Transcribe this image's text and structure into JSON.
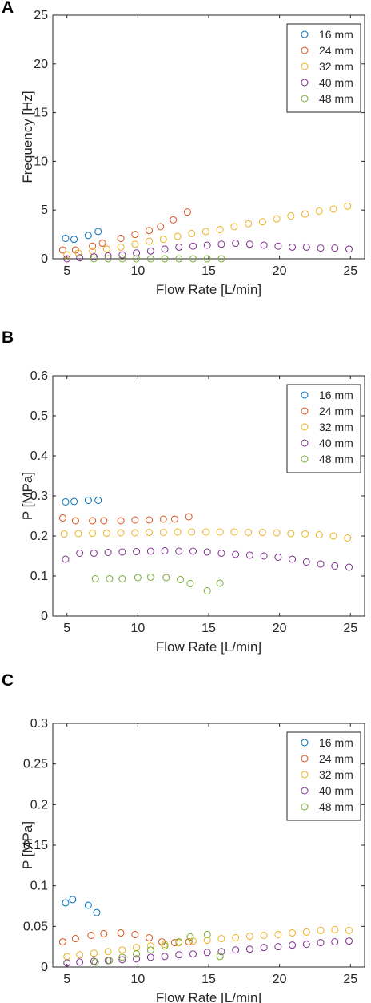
{
  "colors": {
    "16 mm": "#0072BD",
    "24 mm": "#D95319",
    "32 mm": "#EDB120",
    "40 mm": "#7E2F8E",
    "48 mm": "#77AC30"
  },
  "chart_data": [
    {
      "panel_label": "A",
      "type": "scatter",
      "xlabel": "Flow Rate [L/min]",
      "ylabel": "Frequency [Hz]",
      "xlim": [
        4,
        26
      ],
      "ylim": [
        0,
        25
      ],
      "xticks": [
        5,
        10,
        15,
        20,
        25
      ],
      "yticks": [
        0,
        5,
        10,
        15,
        20,
        25
      ],
      "ytick_labels": [
        "0",
        "5",
        "10",
        "15",
        "20",
        "25"
      ],
      "grid": false,
      "legend_position": "top-right",
      "series": [
        {
          "name": "16 mm",
          "x": [
            4.9,
            5.5,
            6.5,
            7.2
          ],
          "y": [
            2.1,
            2.0,
            2.4,
            2.8
          ]
        },
        {
          "name": "24 mm",
          "x": [
            4.7,
            5.6,
            6.8,
            7.5,
            8.8,
            9.8,
            10.8,
            11.6,
            12.5,
            13.5
          ],
          "y": [
            0.9,
            0.9,
            1.3,
            1.6,
            2.1,
            2.5,
            2.9,
            3.3,
            4.0,
            4.8
          ]
        },
        {
          "name": "32 mm",
          "x": [
            5.0,
            5.8,
            6.8,
            7.8,
            8.8,
            9.8,
            10.8,
            11.8,
            12.8,
            13.8,
            14.8,
            15.8,
            16.8,
            17.8,
            18.8,
            19.8,
            20.8,
            21.8,
            22.8,
            23.8,
            24.8
          ],
          "y": [
            0.4,
            0.6,
            0.8,
            1.0,
            1.2,
            1.5,
            1.8,
            2.0,
            2.3,
            2.6,
            2.8,
            3.0,
            3.3,
            3.6,
            3.8,
            4.1,
            4.4,
            4.6,
            4.9,
            5.1,
            5.4
          ]
        },
        {
          "name": "40 mm",
          "x": [
            5.0,
            5.9,
            6.9,
            7.9,
            8.9,
            9.9,
            10.9,
            11.9,
            12.9,
            13.9,
            14.9,
            15.9,
            16.9,
            17.9,
            18.9,
            19.9,
            20.9,
            21.9,
            22.9,
            23.9,
            24.9
          ],
          "y": [
            0.0,
            0.1,
            0.2,
            0.3,
            0.4,
            0.6,
            0.8,
            1.0,
            1.2,
            1.3,
            1.4,
            1.5,
            1.6,
            1.5,
            1.4,
            1.3,
            1.2,
            1.2,
            1.1,
            1.1,
            1.0
          ]
        },
        {
          "name": "48 mm",
          "x": [
            6.9,
            7.9,
            8.9,
            9.9,
            10.9,
            11.9,
            12.9,
            13.9,
            14.9,
            15.9
          ],
          "y": [
            0.0,
            0.0,
            0.0,
            0.0,
            0.0,
            0.0,
            0.0,
            0.0,
            0.0,
            0.0
          ]
        }
      ]
    },
    {
      "panel_label": "B",
      "type": "scatter",
      "xlabel": "Flow Rate [L/min]",
      "ylabel": "P [MPa]",
      "xlim": [
        4,
        26
      ],
      "ylim": [
        0,
        0.6
      ],
      "xticks": [
        5,
        10,
        15,
        20,
        25
      ],
      "yticks": [
        0,
        0.1,
        0.2,
        0.3,
        0.4,
        0.5,
        0.6
      ],
      "ytick_labels": [
        "0",
        "0.1",
        "0.2",
        "0.3",
        "0.4",
        "0.5",
        "0.6"
      ],
      "grid": false,
      "legend_position": "top-right",
      "series": [
        {
          "name": "16 mm",
          "x": [
            4.9,
            5.5,
            6.5,
            7.2
          ],
          "y": [
            0.285,
            0.286,
            0.289,
            0.289
          ]
        },
        {
          "name": "24 mm",
          "x": [
            4.7,
            5.6,
            6.8,
            7.6,
            8.8,
            9.8,
            10.8,
            11.8,
            12.6,
            13.6
          ],
          "y": [
            0.245,
            0.238,
            0.238,
            0.238,
            0.238,
            0.24,
            0.24,
            0.242,
            0.242,
            0.248
          ]
        },
        {
          "name": "32 mm",
          "x": [
            4.8,
            5.8,
            6.8,
            7.8,
            8.8,
            9.8,
            10.8,
            11.8,
            12.8,
            13.8,
            14.8,
            15.8,
            16.8,
            17.8,
            18.8,
            19.8,
            20.8,
            21.8,
            22.8,
            23.8,
            24.8
          ],
          "y": [
            0.205,
            0.206,
            0.207,
            0.207,
            0.208,
            0.208,
            0.209,
            0.209,
            0.21,
            0.21,
            0.21,
            0.21,
            0.21,
            0.209,
            0.209,
            0.208,
            0.206,
            0.205,
            0.203,
            0.2,
            0.195
          ]
        },
        {
          "name": "40 mm",
          "x": [
            4.9,
            5.9,
            6.9,
            7.9,
            8.9,
            9.9,
            10.9,
            11.9,
            12.9,
            13.9,
            14.9,
            15.9,
            16.9,
            17.9,
            18.9,
            19.9,
            20.9,
            21.9,
            22.9,
            23.9,
            24.9
          ],
          "y": [
            0.142,
            0.157,
            0.157,
            0.159,
            0.16,
            0.161,
            0.162,
            0.163,
            0.162,
            0.162,
            0.16,
            0.157,
            0.154,
            0.152,
            0.15,
            0.147,
            0.142,
            0.135,
            0.13,
            0.125,
            0.122
          ]
        },
        {
          "name": "48 mm",
          "x": [
            7.0,
            8.0,
            8.9,
            10.0,
            10.9,
            12.0,
            13.0,
            13.7,
            14.9,
            15.8
          ],
          "y": [
            0.093,
            0.093,
            0.093,
            0.096,
            0.097,
            0.096,
            0.091,
            0.081,
            0.063,
            0.082
          ]
        }
      ]
    },
    {
      "panel_label": "C",
      "type": "scatter",
      "xlabel": "Flow Rate [L/min]",
      "ylabel": "P [MPa]",
      "xlim": [
        4,
        26
      ],
      "ylim": [
        0,
        0.3
      ],
      "xticks": [
        5,
        10,
        15,
        20,
        25
      ],
      "yticks": [
        0,
        0.05,
        0.1,
        0.15,
        0.2,
        0.25,
        0.3
      ],
      "ytick_labels": [
        "0",
        "0.05",
        "0.1",
        "0.15",
        "0.2",
        "0.25",
        "0.3"
      ],
      "grid": false,
      "legend_position": "top-right",
      "series": [
        {
          "name": "16 mm",
          "x": [
            4.9,
            5.4,
            6.5,
            7.1
          ],
          "y": [
            0.079,
            0.083,
            0.076,
            0.067
          ]
        },
        {
          "name": "24 mm",
          "x": [
            4.7,
            5.6,
            6.7,
            7.6,
            8.8,
            9.8,
            10.8,
            11.7,
            12.6,
            13.6
          ],
          "y": [
            0.031,
            0.035,
            0.039,
            0.041,
            0.042,
            0.04,
            0.036,
            0.031,
            0.03,
            0.031
          ]
        },
        {
          "name": "32 mm",
          "x": [
            5.0,
            5.9,
            6.9,
            7.9,
            8.9,
            9.9,
            10.9,
            11.9,
            12.9,
            13.9,
            14.9,
            15.9,
            16.9,
            17.9,
            18.9,
            19.9,
            20.9,
            21.9,
            22.9,
            23.9,
            24.9
          ],
          "y": [
            0.013,
            0.015,
            0.017,
            0.019,
            0.021,
            0.024,
            0.026,
            0.028,
            0.03,
            0.032,
            0.033,
            0.035,
            0.036,
            0.038,
            0.039,
            0.04,
            0.042,
            0.043,
            0.045,
            0.046,
            0.045
          ]
        },
        {
          "name": "40 mm",
          "x": [
            5.0,
            5.9,
            6.9,
            7.9,
            8.9,
            9.9,
            10.9,
            11.9,
            12.9,
            13.9,
            14.9,
            15.9,
            16.9,
            17.9,
            18.9,
            19.9,
            20.9,
            21.9,
            22.9,
            23.9,
            24.9
          ],
          "y": [
            0.005,
            0.006,
            0.007,
            0.008,
            0.009,
            0.01,
            0.012,
            0.013,
            0.015,
            0.016,
            0.018,
            0.019,
            0.021,
            0.022,
            0.024,
            0.025,
            0.027,
            0.028,
            0.03,
            0.031,
            0.032
          ]
        },
        {
          "name": "48 mm",
          "x": [
            7.0,
            8.0,
            8.9,
            9.9,
            10.9,
            11.9,
            12.9,
            13.7,
            14.9,
            15.8
          ],
          "y": [
            0.006,
            0.008,
            0.012,
            0.016,
            0.021,
            0.026,
            0.031,
            0.037,
            0.04,
            0.013
          ]
        }
      ]
    }
  ]
}
